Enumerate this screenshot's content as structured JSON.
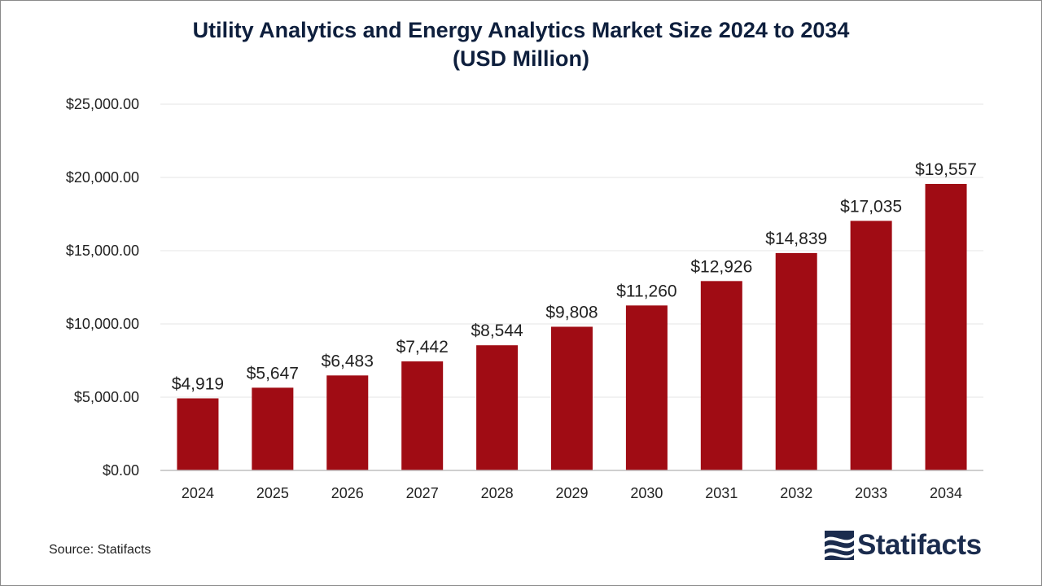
{
  "chart_data": {
    "type": "bar",
    "title_line1": "Utility Analytics and Energy Analytics Market Size 2024 to 2034",
    "title_line2": "(USD Million)",
    "xlabel": "",
    "ylabel": "",
    "categories": [
      "2024",
      "2025",
      "2026",
      "2027",
      "2028",
      "2029",
      "2030",
      "2031",
      "2032",
      "2033",
      "2034"
    ],
    "values": [
      4919,
      5647,
      6483,
      7442,
      8544,
      9808,
      11260,
      12926,
      14839,
      17035,
      19557
    ],
    "value_labels": [
      "$4,919",
      "$5,647",
      "$6,483",
      "$7,442",
      "$8,544",
      "$9,808",
      "$11,260",
      "$12,926",
      "$14,839",
      "$17,035",
      "$19,557"
    ],
    "ylim": [
      0,
      25000
    ],
    "yticks": [
      0,
      5000,
      10000,
      15000,
      20000,
      25000
    ],
    "ytick_labels": [
      "$0.00",
      "$5,000.00",
      "$10,000.00",
      "$15,000.00",
      "$20,000.00",
      "$25,000.00"
    ],
    "grid": true,
    "legend": "none",
    "bar_color": "#a00c14"
  },
  "footer": {
    "source": "Source: Statifacts",
    "logo_text": "Statifacts"
  },
  "colors": {
    "title": "#0e1f3d",
    "logo": "#1b2c4e",
    "grid": "#e6e6e6",
    "axis": "#bfbfbf"
  }
}
